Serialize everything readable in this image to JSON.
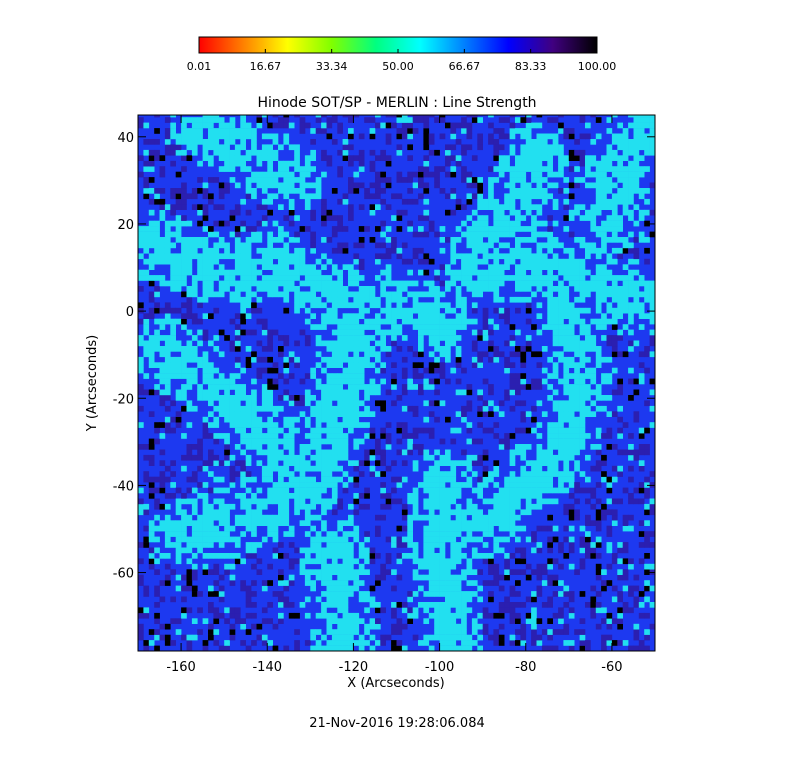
{
  "chart_data": {
    "type": "heatmap",
    "title": "Hinode SOT/SP - MERLIN : Line Strength",
    "xlabel": "X (Arcseconds)",
    "ylabel": "Y (Arcseconds)",
    "xlim": [
      -170,
      -50
    ],
    "ylim": [
      -78,
      45
    ],
    "x_ticks": [
      -160,
      -140,
      -120,
      -100,
      -80,
      -60
    ],
    "y_ticks": [
      -60,
      -40,
      -20,
      0,
      20,
      40
    ],
    "colorbar": {
      "min": 0.01,
      "max": 100.0,
      "tick_labels": [
        "0.01",
        "16.67",
        "33.34",
        "50.00",
        "66.67",
        "83.33",
        "100.00"
      ],
      "colormap": [
        "#ff0000",
        "#ff8000",
        "#ffff00",
        "#80ff00",
        "#00ff80",
        "#00ffff",
        "#0080ff",
        "#0000ff",
        "#400080",
        "#000000"
      ]
    },
    "value_levels": {
      "network": 60,
      "typical": 80,
      "dense": 90,
      "dark_points": 100
    },
    "colors": {
      "network": "#22e0f0",
      "typical": "#1d39f0",
      "dense": "#2b1fb0",
      "dark_points": "#000000"
    }
  },
  "timestamp": "21-Nov-2016 19:28:06.084"
}
